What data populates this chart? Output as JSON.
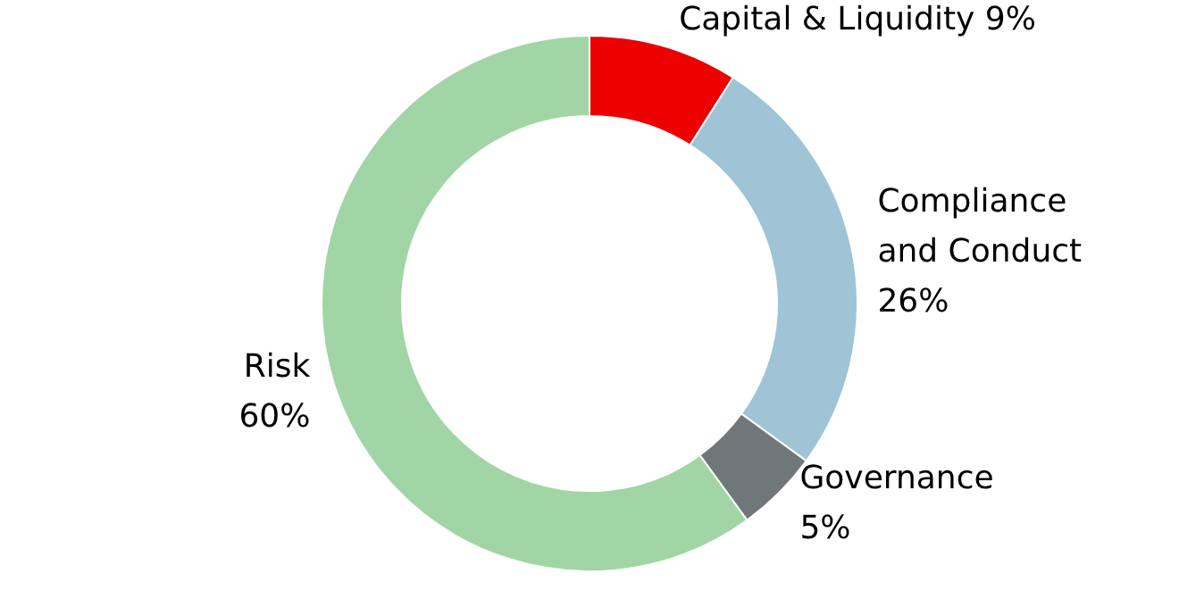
{
  "chart_data": {
    "type": "donut",
    "categories": [
      "Capital & Liquidity",
      "Compliance and Conduct",
      "Governance",
      "Risk"
    ],
    "values": [
      9,
      26,
      5,
      60
    ],
    "value_labels": [
      "9%",
      "26%",
      "5%",
      "60%"
    ],
    "colors": [
      "#ec0000",
      "#9ec4d6",
      "#6f7779",
      "#a1d5a5"
    ]
  }
}
